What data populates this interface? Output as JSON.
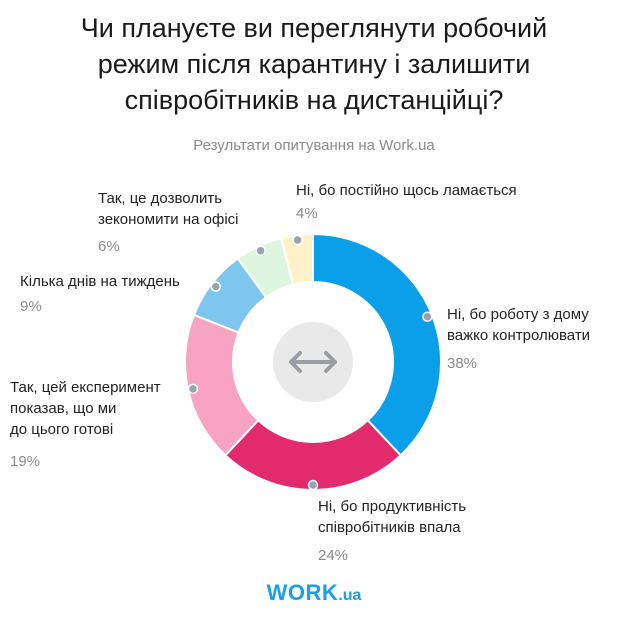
{
  "chart_data": {
    "type": "pie",
    "title": "Чи плануєте ви переглянути робочий\nрежим після карантину і залишити\nспівробітників на дистанційці?",
    "subtitle": "Результати опитування на Work.ua",
    "slices": [
      {
        "label": "Ні, бо роботу з дому\nважко контролювати",
        "value": 38,
        "value_label": "38%",
        "color": "#0a9fe8"
      },
      {
        "label": "Ні, бо продуктивність\nспівробітників впала",
        "value": 24,
        "value_label": "24%",
        "color": "#e32a6d"
      },
      {
        "label": "Так, цей експеримент\nпоказав, що ми\nдо цього готові",
        "value": 19,
        "value_label": "19%",
        "color": "#f9a3c3"
      },
      {
        "label": "Кілька днів на тиждень",
        "value": 9,
        "value_label": "9%",
        "color": "#7ec6ee"
      },
      {
        "label": "Так, це дозволить\nзекономити на офісі",
        "value": 6,
        "value_label": "6%",
        "color": "#def5df"
      },
      {
        "label": "Ні, бо постійно щось ламається",
        "value": 4,
        "value_label": "4%",
        "color": "#fff1c8"
      }
    ]
  },
  "center_icon": "double-arrow-icon",
  "logo": {
    "main": "WORK",
    "tld": ".ua",
    "color": "#1aa0e8"
  }
}
